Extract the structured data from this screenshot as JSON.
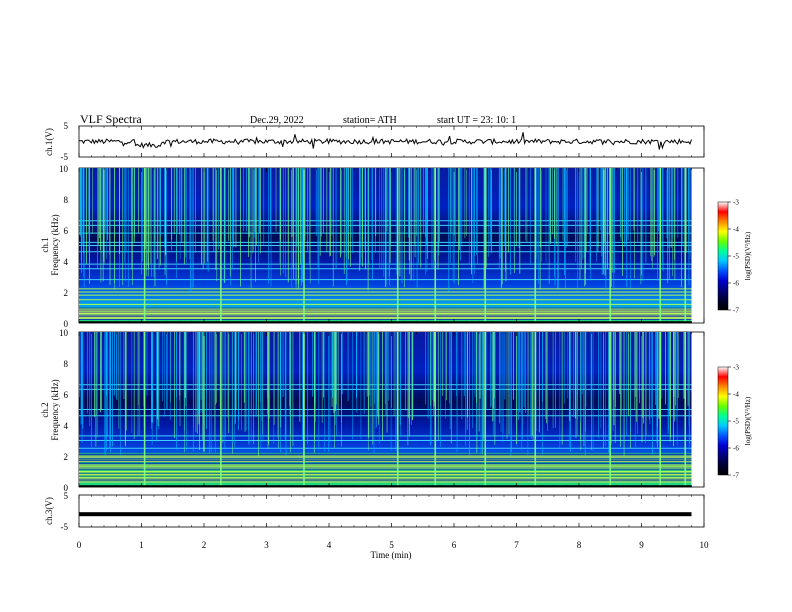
{
  "header": {
    "title": "VLF  Spectra",
    "date": "Dec.29, 2022",
    "station": "station= ATH",
    "start": "start  UT  =    23: 10: 1"
  },
  "chart_data": {
    "type": "spectrogram",
    "xlabel": "Time  (min)",
    "xlim": [
      0,
      10
    ],
    "xticks": [
      "0",
      "1",
      "2",
      "3",
      "4",
      "5",
      "6",
      "7",
      "8",
      "9",
      "10"
    ],
    "panels": [
      {
        "id": "ch1-voltage",
        "type": "line",
        "ylabel": "ch.1(V)",
        "ylim": [
          -5,
          5
        ],
        "yticks": [
          "5",
          "-5"
        ],
        "baseline": 0,
        "color": "#000000"
      },
      {
        "id": "ch1-spectrogram",
        "type": "heatmap",
        "ylabel": "ch.1\nFrequency  (kHz)",
        "ylim": [
          0,
          10
        ],
        "yticks": [
          "0",
          "2",
          "4",
          "6",
          "8",
          "10"
        ],
        "horizontal_lines_khz": [
          0.3,
          0.6,
          0.9,
          1.2,
          1.5,
          1.8,
          2.0,
          2.2,
          2.8,
          3.5,
          3.8,
          4.6,
          5.0,
          5.2,
          5.8,
          6.3,
          6.6
        ],
        "bright_band_khz": [
          0.2,
          1.0
        ],
        "whistler_times_min": [
          1.05,
          2.27,
          3.6,
          5.1,
          5.7,
          6.5,
          7.3,
          8.5,
          9.3,
          9.7
        ],
        "colorbar": {
          "label": "log(PSD)(V²/Hz)",
          "range": [
            -7,
            -3
          ],
          "ticks": [
            "-3",
            "-4",
            "-5",
            "-6",
            "-7"
          ]
        }
      },
      {
        "id": "ch2-spectrogram",
        "type": "heatmap",
        "ylabel": "ch.2\nFrequency  (kHz)",
        "ylim": [
          0,
          10
        ],
        "yticks": [
          "0",
          "2",
          "4",
          "6",
          "8",
          "10"
        ],
        "horizontal_lines_khz": [
          0.6,
          1.0,
          1.3,
          2.0,
          2.5,
          3.0,
          3.3,
          4.6,
          5.0,
          6.3,
          6.6
        ],
        "bright_band_khz": [
          0.3,
          2.2
        ],
        "whistler_times_min": [
          1.05,
          2.27,
          3.6,
          5.1,
          5.7,
          6.5,
          7.3,
          8.5,
          9.3,
          9.7
        ],
        "colorbar": {
          "label": "log(PSD)(V²/Hz)",
          "range": [
            -7,
            -3
          ],
          "ticks": [
            "-3",
            "-4",
            "-5",
            "-6",
            "-7"
          ]
        }
      },
      {
        "id": "ch3-voltage",
        "type": "line",
        "ylabel": "ch.3(V)",
        "ylim": [
          -5,
          5
        ],
        "yticks": [
          "5",
          "-5"
        ],
        "baseline": -1,
        "color": "#000000"
      }
    ],
    "data_end_min": 9.8,
    "colormap": [
      "#000000",
      "#000033",
      "#00007a",
      "#0000d0",
      "#0055ff",
      "#00c8ff",
      "#00ff99",
      "#66ff00",
      "#ffff00",
      "#ff8800",
      "#ff0000",
      "#ffffff"
    ]
  }
}
